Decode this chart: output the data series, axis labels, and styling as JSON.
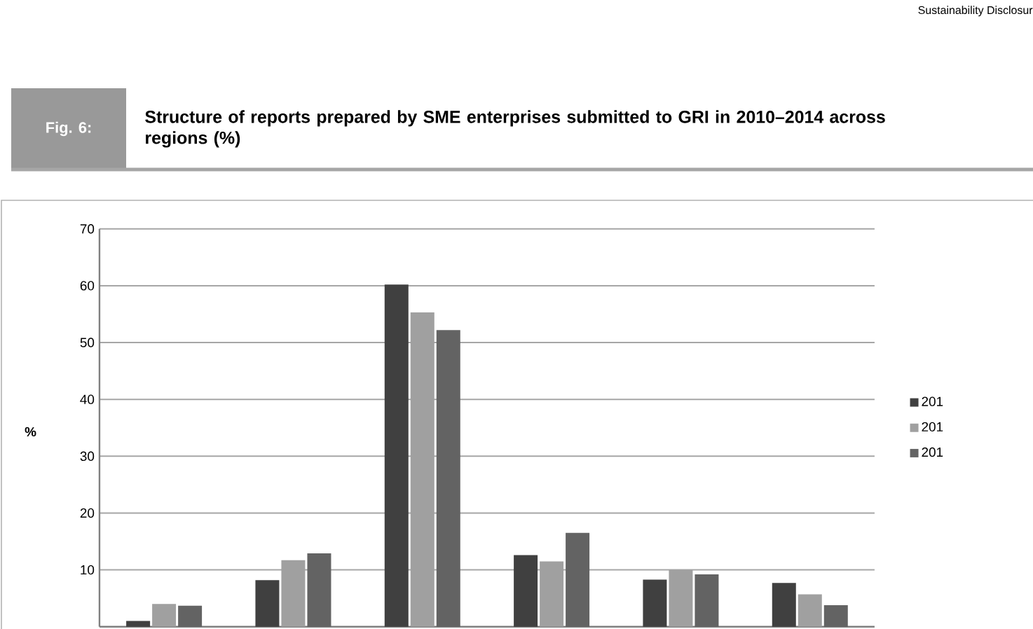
{
  "chart_data": {
    "type": "bar",
    "title": "Structure of reports prepared by SME enterprises submitted to GRI in 2010–2014 across regions (%)",
    "annotations": [
      "Fig. 6:",
      "Sustainability Disclosur"
    ],
    "ylabel": "%",
    "categories": [
      null,
      null,
      null,
      null,
      null,
      null
    ],
    "series": [
      {
        "name": "201",
        "color": "#404040",
        "values": [
          1,
          8.2,
          60.2,
          12.6,
          8.3,
          7.7
        ]
      },
      {
        "name": "201",
        "color": "#a0a0a0",
        "values": [
          4,
          11.7,
          55.3,
          11.5,
          10,
          5.7
        ]
      },
      {
        "name": "201",
        "color": "#636363",
        "values": [
          3.7,
          12.9,
          52.2,
          16.5,
          9.2,
          3.8
        ]
      }
    ],
    "ylim": [
      0,
      70
    ],
    "yticks": [
      10,
      20,
      30,
      40,
      50,
      60,
      70
    ],
    "grid": "y",
    "legend": "right"
  }
}
